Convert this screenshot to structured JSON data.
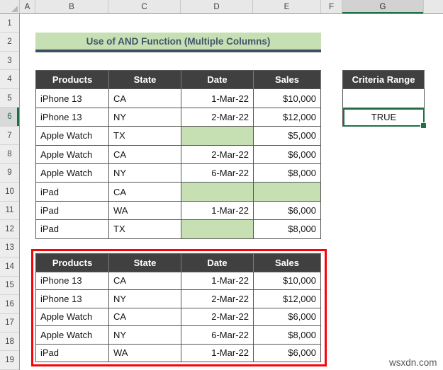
{
  "sheet": {
    "columns": [
      "A",
      "B",
      "C",
      "D",
      "E",
      "F",
      "G"
    ],
    "rows": [
      "1",
      "2",
      "3",
      "4",
      "5",
      "6",
      "7",
      "8",
      "9",
      "10",
      "11",
      "12",
      "13",
      "14",
      "15",
      "16",
      "17",
      "18",
      "19"
    ],
    "selected_column": "G",
    "selected_row": "6"
  },
  "banner": {
    "title": "Use of AND Function (Multiple Columns)"
  },
  "table1": {
    "headers": [
      "Products",
      "State",
      "Date",
      "Sales"
    ],
    "rows": [
      [
        "iPhone 13",
        "CA",
        "1-Mar-22",
        "$10,000"
      ],
      [
        "iPhone 13",
        "NY",
        "2-Mar-22",
        "$12,000"
      ],
      [
        "Apple Watch",
        "TX",
        "",
        "$5,000"
      ],
      [
        "Apple Watch",
        "CA",
        "2-Mar-22",
        "$6,000"
      ],
      [
        "Apple Watch",
        "NY",
        "6-Mar-22",
        "$8,000"
      ],
      [
        "iPad",
        "CA",
        "",
        ""
      ],
      [
        "iPad",
        "WA",
        "1-Mar-22",
        "$6,000"
      ],
      [
        "iPad",
        "TX",
        "",
        "$8,000"
      ]
    ]
  },
  "criteria": {
    "header": "Criteria Range",
    "value": "TRUE"
  },
  "table2": {
    "headers": [
      "Products",
      "State",
      "Date",
      "Sales"
    ],
    "rows": [
      [
        "iPhone 13",
        "CA",
        "1-Mar-22",
        "$10,000"
      ],
      [
        "iPhone 13",
        "NY",
        "2-Mar-22",
        "$12,000"
      ],
      [
        "Apple Watch",
        "CA",
        "2-Mar-22",
        "$6,000"
      ],
      [
        "Apple Watch",
        "NY",
        "6-Mar-22",
        "$8,000"
      ],
      [
        "iPad",
        "WA",
        "1-Mar-22",
        "$6,000"
      ]
    ]
  },
  "watermark": "wsxdn.com",
  "colors": {
    "table_header_bg": "#404040",
    "highlight_green": "#c6e0b4",
    "banner_text": "#44546a",
    "selection_green": "#1e7145",
    "annotation_red": "#fb0207"
  }
}
